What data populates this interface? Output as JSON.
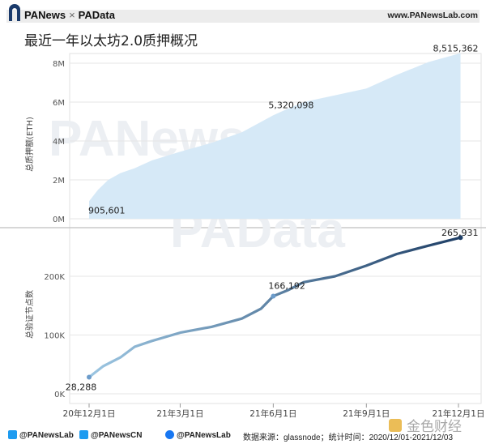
{
  "header": {
    "brand_left": "PANews",
    "brand_sep": "×",
    "brand_right": "PAData",
    "site_url": "www.PANewsLab.com"
  },
  "title": "最近一年以太坊2.0质押概况",
  "watermarks": {
    "top": "PANews",
    "bottom": "PAData"
  },
  "footer": {
    "twitter_1": "@PANewsLab",
    "twitter_2": "@PANewsCN",
    "facebook": "@PANewsLab",
    "source": "数据来源：glassnode；统计时间：2020/12/01-2021/12/03",
    "corner_logo": "金色财经"
  },
  "colors": {
    "area_fill": "#d6e9f7",
    "line_start": "#9cc6e2",
    "line_end": "#1f3f66",
    "grid": "#e6e6e6"
  },
  "chart_data": [
    {
      "type": "area",
      "ylabel": "总质押额(ETH)",
      "ylim": [
        0,
        8500000
      ],
      "yticks": [
        0,
        2000000,
        4000000,
        6000000,
        8000000
      ],
      "ytick_labels": [
        "0M",
        "2M",
        "4M",
        "6M",
        "8M"
      ],
      "x": [
        "2020-12-01",
        "2020-12-10",
        "2020-12-20",
        "2021-01-01",
        "2021-01-15",
        "2021-02-01",
        "2021-03-01",
        "2021-04-01",
        "2021-05-01",
        "2021-06-01",
        "2021-06-15",
        "2021-07-01",
        "2021-08-01",
        "2021-09-01",
        "2021-10-01",
        "2021-11-01",
        "2021-12-03"
      ],
      "values": [
        905601,
        1500000,
        2000000,
        2350000,
        2600000,
        3000000,
        3450000,
        3900000,
        4450000,
        5320098,
        5650000,
        6000000,
        6350000,
        6700000,
        7400000,
        8050000,
        8515362
      ],
      "annotations": [
        {
          "x": "2020-12-01",
          "value": 905601,
          "label": "905,601"
        },
        {
          "x": "2021-06-01",
          "value": 5320098,
          "label": "5,320,098"
        },
        {
          "x": "2021-12-03",
          "value": 8515362,
          "label": "8,515,362"
        }
      ]
    },
    {
      "type": "line",
      "ylabel": "总验证节点数",
      "ylim": [
        0,
        280000
      ],
      "yticks": [
        0,
        100000,
        200000
      ],
      "ytick_labels": [
        "0K",
        "100K",
        "200K"
      ],
      "x": [
        "2020-12-01",
        "2020-12-15",
        "2021-01-01",
        "2021-01-15",
        "2021-02-01",
        "2021-03-01",
        "2021-04-01",
        "2021-05-01",
        "2021-05-20",
        "2021-06-01",
        "2021-06-15",
        "2021-07-01",
        "2021-08-01",
        "2021-09-01",
        "2021-10-01",
        "2021-11-01",
        "2021-12-03"
      ],
      "values": [
        28288,
        47000,
        62000,
        80000,
        90000,
        104000,
        114000,
        128000,
        145000,
        166192,
        176000,
        190000,
        200000,
        218000,
        238000,
        252000,
        265931
      ],
      "annotations": [
        {
          "x": "2020-12-01",
          "value": 28288,
          "label": "28,288"
        },
        {
          "x": "2021-06-01",
          "value": 166192,
          "label": "166,192"
        },
        {
          "x": "2021-12-03",
          "value": 265931,
          "label": "265,931"
        }
      ],
      "x_ticks": [
        "2020-12-01",
        "2021-03-01",
        "2021-06-01",
        "2021-09-01",
        "2021-12-01"
      ],
      "x_tick_labels": [
        "20年12月1日",
        "21年3月1日",
        "21年6月1日",
        "21年9月1日",
        "21年12月1日"
      ]
    }
  ]
}
